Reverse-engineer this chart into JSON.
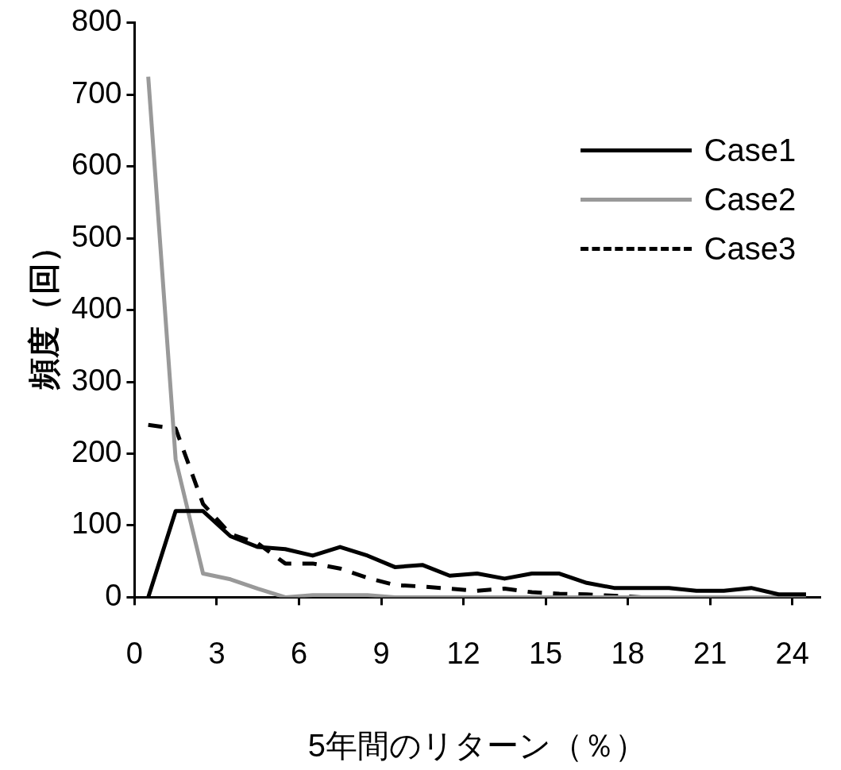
{
  "chart_data": {
    "type": "line",
    "xlabel": "5年間のリターン（％）",
    "ylabel": "頻度（回）",
    "x": [
      0.5,
      1.5,
      2.5,
      3.5,
      4.5,
      5.5,
      6.5,
      7.5,
      8.5,
      9.5,
      10.5,
      11.5,
      12.5,
      13.5,
      14.5,
      15.5,
      16.5,
      17.5,
      18.5,
      19.5,
      20.5,
      21.5,
      22.5,
      23.5,
      24.5
    ],
    "xlim": [
      0,
      25
    ],
    "xticks": [
      0,
      3,
      6,
      9,
      12,
      15,
      18,
      21,
      24
    ],
    "ylim": [
      0,
      800
    ],
    "yticks": [
      0,
      100,
      200,
      300,
      400,
      500,
      600,
      700,
      800
    ],
    "grid": false,
    "legend": "top right",
    "marker": "none",
    "series": [
      {
        "name": "Case1",
        "color": "#000000",
        "line_style": "solid",
        "values": [
          0,
          120,
          120,
          85,
          70,
          67,
          58,
          70,
          58,
          42,
          45,
          30,
          33,
          26,
          33,
          33,
          20,
          13,
          13,
          13,
          9,
          9,
          13,
          4,
          4
        ]
      },
      {
        "name": "Case2",
        "color": "#999999",
        "line_style": "solid",
        "values": [
          725,
          192,
          33,
          25,
          12,
          0,
          3,
          3,
          3,
          0,
          0,
          0,
          0,
          0,
          0,
          0,
          0,
          0,
          0,
          0,
          0,
          0,
          0,
          0,
          0
        ]
      },
      {
        "name": "Case3",
        "color": "#000000",
        "line_style": "dashed",
        "values": [
          240,
          235,
          130,
          88,
          75,
          47,
          47,
          40,
          27,
          17,
          15,
          12,
          9,
          12,
          7,
          5,
          4,
          2,
          0,
          0,
          0,
          0,
          0,
          0,
          0
        ]
      }
    ]
  }
}
